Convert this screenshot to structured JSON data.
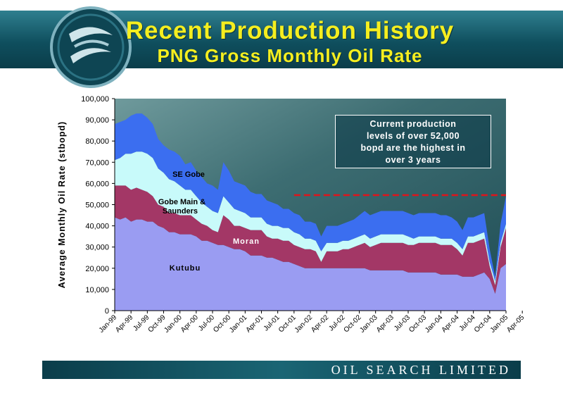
{
  "header": {
    "title": "Recent Production History",
    "subtitle": "PNG Gross Monthly Oil Rate"
  },
  "footer": {
    "company": "OIL SEARCH LIMITED"
  },
  "callout": {
    "lines": [
      "Current production",
      "levels of over 52,000",
      "bopd are the highest in",
      "over 3 years"
    ]
  },
  "colors": {
    "kutubu": "#9a9cf2",
    "moran": "#a33766",
    "gobe_main_saunders": "#c8fafa",
    "se_gobe": "#3b6ef0",
    "reference_line": "#e0141b",
    "plot_background": "#2c5a60"
  },
  "chart_data": {
    "type": "area",
    "stacked": true,
    "ylabel": "Average Monthly Oil Rate (stbopd)",
    "xlabel": "",
    "ylim": [
      0,
      100000
    ],
    "y_ticks": [
      "0",
      "10,000",
      "20,000",
      "30,000",
      "40,000",
      "50,000",
      "60,000",
      "70,000",
      "80,000",
      "90,000",
      "100,000"
    ],
    "x_tick_labels": [
      "Jan-99",
      "Apr-99",
      "Jul-99",
      "Oct-99",
      "Jan-00",
      "Apr-00",
      "Jul-00",
      "Oct-00",
      "Jan-01",
      "Apr-01",
      "Jul-01",
      "Oct-01",
      "Jan-02",
      "Apr-02",
      "Jul-02",
      "Oct-02",
      "Jan-03",
      "Apr-03",
      "Jul-03",
      "Oct-03",
      "Jan-04",
      "Apr-04",
      "Jul-04",
      "Oct-04",
      "Jan-05",
      "Apr-05"
    ],
    "reference_line": {
      "value": 54500,
      "from": "Oct-01",
      "to": "Apr-05"
    },
    "series": [
      {
        "name": "Kutubu",
        "values": [
          44000,
          43000,
          44000,
          42000,
          43000,
          43000,
          42000,
          42000,
          40000,
          39000,
          37000,
          37000,
          36000,
          36000,
          36000,
          35000,
          33000,
          33000,
          32000,
          31000,
          31000,
          30000,
          29000,
          29000,
          28000,
          26000,
          26000,
          26000,
          25000,
          25000,
          24000,
          23000,
          23000,
          22000,
          21000,
          20000,
          20000,
          20000,
          20000,
          20000,
          20000,
          20000,
          20000,
          20000,
          20000,
          20000,
          20000,
          19000,
          19000,
          19000,
          19000,
          19000,
          19000,
          19000,
          18000,
          18000,
          18000,
          18000,
          18000,
          18000,
          17000,
          17000,
          17000,
          17000,
          16000,
          16000,
          16000,
          17000,
          18000,
          15000,
          8000,
          20000,
          22000
        ]
      },
      {
        "name": "Moran",
        "values": [
          15000,
          16000,
          15000,
          15000,
          15000,
          14000,
          14000,
          12000,
          10000,
          10000,
          9000,
          9000,
          9000,
          9000,
          9000,
          8000,
          8000,
          7000,
          6000,
          6000,
          14000,
          13000,
          11000,
          11000,
          11000,
          12000,
          12000,
          12000,
          10000,
          9000,
          10000,
          10000,
          10000,
          9000,
          9000,
          9000,
          9000,
          8000,
          3000,
          8000,
          8000,
          8000,
          9000,
          9000,
          10000,
          11000,
          12000,
          11000,
          12000,
          13000,
          13000,
          13000,
          13000,
          13000,
          13000,
          13000,
          14000,
          14000,
          14000,
          14000,
          14000,
          14000,
          14000,
          12000,
          10000,
          16000,
          16000,
          16000,
          16000,
          6000,
          4000,
          10000,
          17000
        ]
      },
      {
        "name": "Gobe Main & Saunders",
        "values": [
          12000,
          13000,
          15000,
          17000,
          17000,
          18000,
          18000,
          18000,
          17000,
          16000,
          16000,
          15000,
          14000,
          12000,
          12000,
          11000,
          10000,
          9000,
          9000,
          9000,
          9000,
          8000,
          8000,
          7000,
          7000,
          6000,
          6000,
          6000,
          6000,
          6000,
          6000,
          6000,
          6000,
          6000,
          6000,
          5000,
          5000,
          5000,
          5000,
          4000,
          4000,
          4000,
          4000,
          4000,
          4000,
          4000,
          4000,
          4000,
          4000,
          4000,
          4000,
          4000,
          4000,
          4000,
          4000,
          3000,
          3000,
          3000,
          3000,
          3000,
          3000,
          3000,
          3000,
          3000,
          3000,
          3000,
          3000,
          3000,
          3000,
          2000,
          2000,
          2000,
          2000
        ]
      },
      {
        "name": "SE Gobe",
        "values": [
          17000,
          17000,
          16000,
          18000,
          18000,
          18000,
          17000,
          16000,
          14000,
          13000,
          14000,
          14000,
          14000,
          12000,
          13000,
          12000,
          12000,
          11000,
          12000,
          11000,
          16000,
          15000,
          13000,
          13000,
          13000,
          12000,
          11000,
          11000,
          11000,
          11000,
          10000,
          9000,
          9000,
          9000,
          9000,
          8000,
          8000,
          8000,
          7000,
          8000,
          8000,
          8000,
          8000,
          9000,
          9000,
          10000,
          11000,
          11000,
          11000,
          11000,
          11000,
          11000,
          11000,
          11000,
          11000,
          11000,
          11000,
          11000,
          11000,
          11000,
          11000,
          11000,
          10000,
          10000,
          9000,
          9000,
          9000,
          9000,
          9000,
          6000,
          2000,
          9000,
          13000
        ]
      }
    ]
  }
}
